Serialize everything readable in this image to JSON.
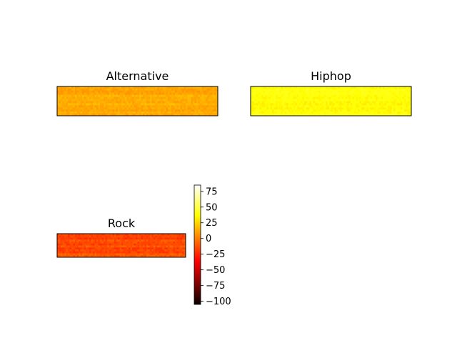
{
  "chart_data": [
    {
      "type": "heatmap",
      "title": "Alternative",
      "value_range": [
        5,
        20
      ],
      "mean_value": 12,
      "colormap": "hot"
    },
    {
      "type": "heatmap",
      "title": "Hiphop",
      "value_range": [
        30,
        45
      ],
      "mean_value": 38,
      "colormap": "hot"
    },
    {
      "type": "heatmap",
      "title": "Rock",
      "value_range": [
        -25,
        -5
      ],
      "mean_value": -15,
      "colormap": "hot"
    }
  ],
  "colorbar": {
    "range": [
      -105,
      85
    ],
    "ticks": [
      {
        "value": 75,
        "label": "75"
      },
      {
        "value": 50,
        "label": "50"
      },
      {
        "value": 25,
        "label": "25"
      },
      {
        "value": 0,
        "label": "0"
      },
      {
        "value": -25,
        "label": "−25"
      },
      {
        "value": -50,
        "label": "−50"
      },
      {
        "value": -75,
        "label": "−75"
      },
      {
        "value": -100,
        "label": "−100"
      }
    ]
  }
}
